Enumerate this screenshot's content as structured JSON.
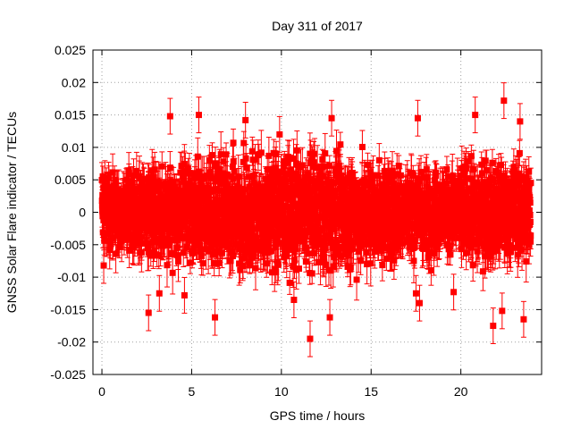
{
  "chart_data": {
    "type": "scatter",
    "title": "Day 311 of 2017",
    "xlabel": "GPS time / hours",
    "ylabel": "GNSS Solar Flare indicator / TECUs",
    "xlim": [
      -0.5,
      24.5
    ],
    "ylim": [
      -0.025,
      0.025
    ],
    "xticks": [
      0,
      5,
      10,
      15,
      20
    ],
    "xtick_labels": [
      "0",
      "5",
      "10",
      "15",
      "20"
    ],
    "yticks": [
      -0.025,
      -0.02,
      -0.015,
      -0.01,
      -0.005,
      0,
      0.005,
      0.01,
      0.015,
      0.02,
      0.025
    ],
    "ytick_labels": [
      "-0.025",
      "-0.02",
      "-0.015",
      "-0.01",
      "-0.005",
      "0",
      "0.005",
      "0.01",
      "0.015",
      "0.02",
      "0.025"
    ],
    "grid": true,
    "series": [
      {
        "name": "GNSS Solar Flare indicator",
        "color": "#ff0000",
        "marker": "square",
        "error_bars": true,
        "sampling_interval_hours": 0.00833,
        "x_range": [
          0,
          23.9
        ],
        "typical_abs_error": 0.0025,
        "typical_spread": 0.006,
        "notable_points": [
          {
            "x": 11.6,
            "y": -0.0195
          },
          {
            "x": 12.7,
            "y": -0.0162
          },
          {
            "x": 6.3,
            "y": -0.0162
          },
          {
            "x": 21.8,
            "y": -0.0175
          },
          {
            "x": 22.4,
            "y": 0.0172
          },
          {
            "x": 22.3,
            "y": -0.0152
          },
          {
            "x": 23.5,
            "y": -0.0165
          },
          {
            "x": 8.0,
            "y": 0.0142
          },
          {
            "x": 9.9,
            "y": 0.012
          },
          {
            "x": 12.8,
            "y": 0.0145
          },
          {
            "x": 17.6,
            "y": 0.0145
          },
          {
            "x": 20.8,
            "y": 0.015
          },
          {
            "x": 5.4,
            "y": 0.015
          },
          {
            "x": 3.8,
            "y": 0.0148
          },
          {
            "x": 2.6,
            "y": -0.0155
          },
          {
            "x": 3.2,
            "y": -0.0125
          },
          {
            "x": 4.6,
            "y": -0.0128
          },
          {
            "x": 10.7,
            "y": -0.0135
          },
          {
            "x": 17.7,
            "y": -0.014
          },
          {
            "x": 17.5,
            "y": -0.0125
          },
          {
            "x": 0.1,
            "y": -0.0082
          },
          {
            "x": 19.6,
            "y": -0.0123
          },
          {
            "x": 23.3,
            "y": 0.014
          }
        ]
      }
    ]
  }
}
